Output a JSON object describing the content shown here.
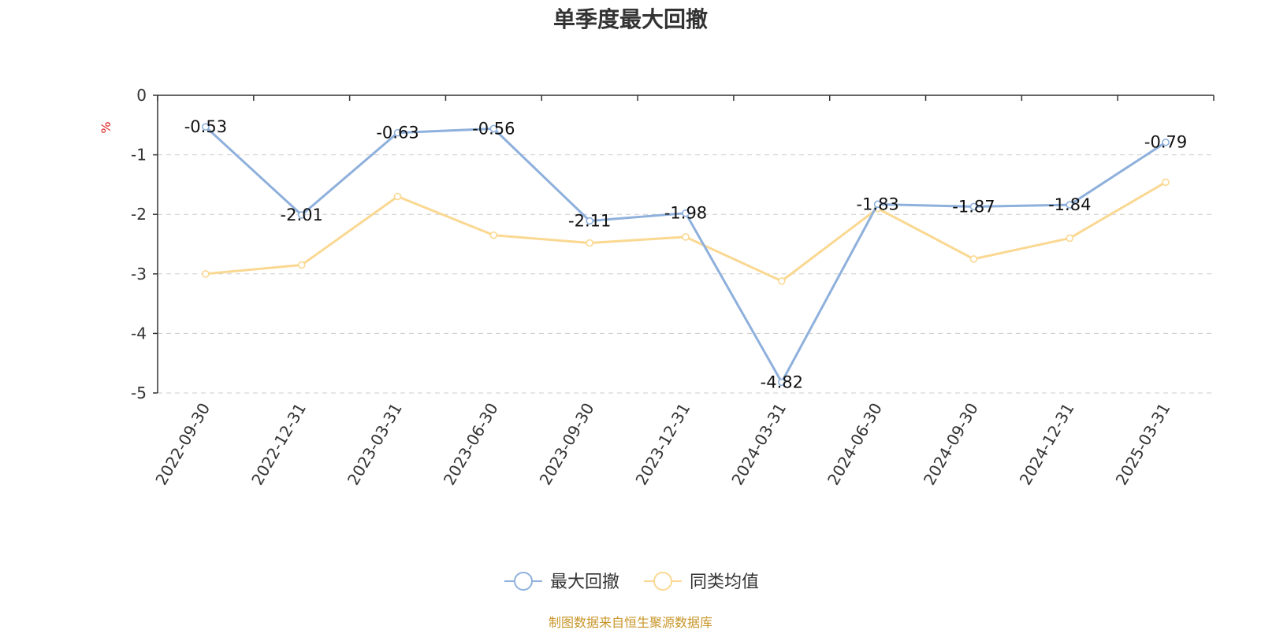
{
  "chart_data": {
    "type": "line",
    "title": "单季度最大回撤",
    "y_unit": "%",
    "categories": [
      "2022-09-30",
      "2022-12-31",
      "2023-03-31",
      "2023-06-30",
      "2023-09-30",
      "2023-12-31",
      "2024-03-31",
      "2024-06-30",
      "2024-09-30",
      "2024-12-31",
      "2025-03-31"
    ],
    "ylim": [
      -5,
      0
    ],
    "yticks": [
      "0",
      "-1",
      "-2",
      "-3",
      "-4",
      "-5"
    ],
    "grid": true,
    "legend_position": "bottom-center",
    "series": [
      {
        "name": "最大回撤",
        "color": "#8eb0dc",
        "values": [
          -0.53,
          -2.01,
          -0.63,
          -0.56,
          -2.11,
          -1.98,
          -4.82,
          -1.83,
          -1.87,
          -1.84,
          -0.79
        ],
        "labels": [
          "-0.53",
          "-2.01",
          "-0.63",
          "-0.56",
          "-2.11",
          "-1.98",
          "-4.82",
          "-1.83",
          "-1.87",
          "-1.84",
          "-0.79"
        ]
      },
      {
        "name": "同类均值",
        "color": "#fad892",
        "values": [
          -3.0,
          -2.85,
          -1.7,
          -2.35,
          -2.48,
          -2.38,
          -3.12,
          -1.9,
          -2.75,
          -2.4,
          -1.46
        ]
      }
    ]
  },
  "source_text": "制图数据来自恒生聚源数据库",
  "colors": {
    "title": "#333333",
    "unit": "#e02020",
    "source": "#c8962a",
    "grid": "#cccccc",
    "axis": "#333333"
  }
}
